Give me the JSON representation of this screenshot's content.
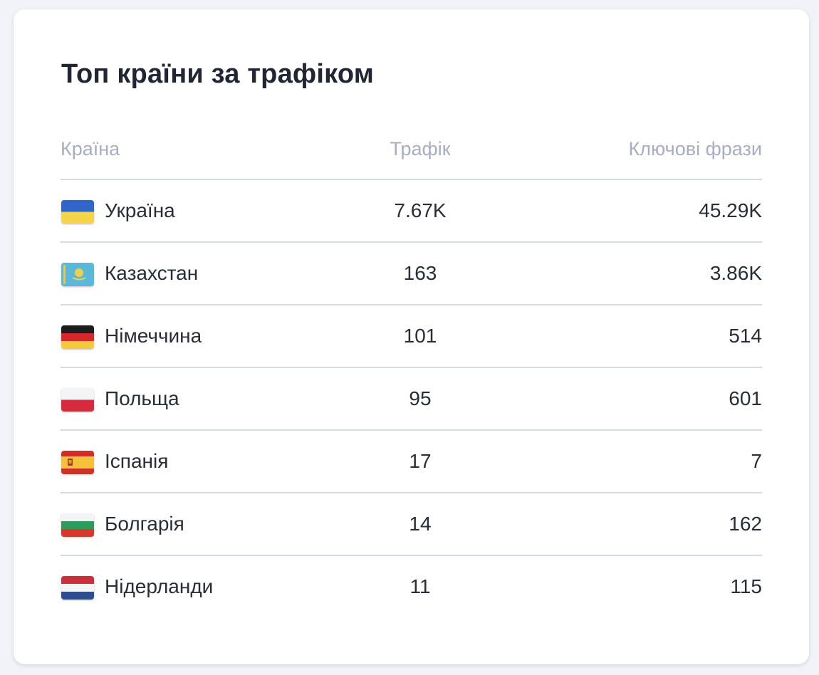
{
  "widget": {
    "title": "Топ країни за трафіком",
    "columns": {
      "country": "Країна",
      "traffic": "Трафік",
      "keywords": "Ключові фрази"
    },
    "rows": [
      {
        "country": "Україна",
        "flag": "ukraine-flag-icon",
        "traffic": "7.67K",
        "keywords": "45.29K"
      },
      {
        "country": "Казахстан",
        "flag": "kazakhstan-flag-icon",
        "traffic": "163",
        "keywords": "3.86K"
      },
      {
        "country": "Німеччина",
        "flag": "germany-flag-icon",
        "traffic": "101",
        "keywords": "514"
      },
      {
        "country": "Польща",
        "flag": "poland-flag-icon",
        "traffic": "95",
        "keywords": "601"
      },
      {
        "country": "Іспанія",
        "flag": "spain-flag-icon",
        "traffic": "17",
        "keywords": "7"
      },
      {
        "country": "Болгарія",
        "flag": "bulgaria-flag-icon",
        "traffic": "14",
        "keywords": "162"
      },
      {
        "country": "Нідерланди",
        "flag": "netherlands-flag-icon",
        "traffic": "11",
        "keywords": "115"
      }
    ]
  },
  "colors": {
    "title": "#222633",
    "header_text": "#a8adc1",
    "cell_text": "#2a2d38",
    "divider": "#d6d9e2",
    "card_bg": "#ffffff",
    "page_bg": "#f2f3f8"
  }
}
